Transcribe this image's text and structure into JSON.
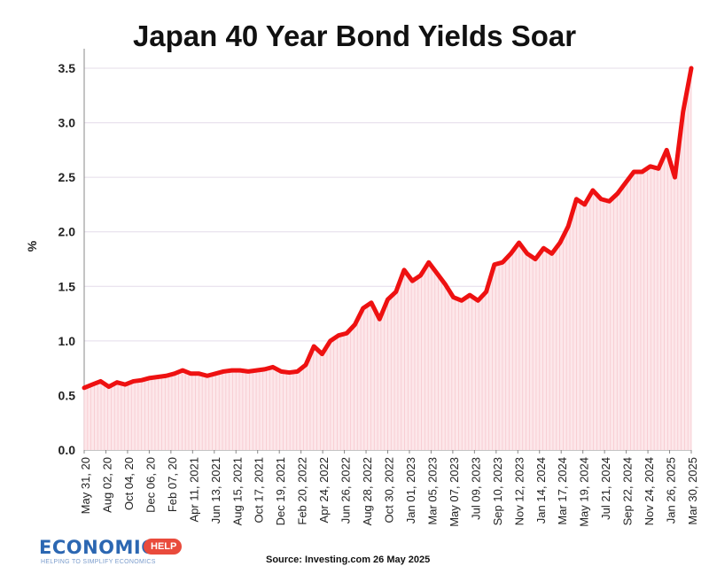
{
  "chart_data": {
    "type": "area",
    "title": "Japan 40 Year Bond Yields Soar",
    "ylabel": "%",
    "xlabel": "",
    "ylim": [
      0,
      3.5
    ],
    "yticks": [
      "0.0",
      "0.5",
      "1.0",
      "1.5",
      "2.0",
      "2.5",
      "3.0",
      "3.5"
    ],
    "xtick_labels": [
      "May 31, 20",
      "Aug 02, 20",
      "Oct 04, 20",
      "Dec 06, 20",
      "Feb 07, 20",
      "Apr 11, 2021",
      "Jun 13, 2021",
      "Aug 15, 2021",
      "Oct 17, 2021",
      "Dec 19, 2021",
      "Feb 20, 2022",
      "Apr 24, 2022",
      "Jun 26, 2022",
      "Aug 28, 2022",
      "Oct 30, 2022",
      "Jan 01, 2023",
      "Mar 05, 2023",
      "May 07, 2023",
      "Jul 09, 2023",
      "Sep 10, 2023",
      "Nov 12, 2023",
      "Jan 14, 2024",
      "Mar 17, 2024",
      "May 19, 2024",
      "Jul 21, 2024",
      "Sep 22, 2024",
      "Nov 24, 2024",
      "Jan 26, 2025",
      "Mar 30, 2025"
    ],
    "grid": true,
    "color": "#ee1111",
    "series": [
      {
        "values": [
          0.57,
          0.6,
          0.63,
          0.58,
          0.62,
          0.6,
          0.63,
          0.64,
          0.66,
          0.67,
          0.68,
          0.7,
          0.73,
          0.7,
          0.7,
          0.68,
          0.7,
          0.72,
          0.73,
          0.73,
          0.72,
          0.73,
          0.74,
          0.76,
          0.72,
          0.71,
          0.72,
          0.78,
          0.95,
          0.88,
          1.0,
          1.05,
          1.07,
          1.15,
          1.3,
          1.35,
          1.2,
          1.38,
          1.45,
          1.65,
          1.55,
          1.6,
          1.72,
          1.62,
          1.52,
          1.4,
          1.37,
          1.42,
          1.37,
          1.45,
          1.7,
          1.72,
          1.8,
          1.9,
          1.8,
          1.75,
          1.85,
          1.8,
          1.9,
          2.05,
          2.3,
          2.25,
          2.38,
          2.3,
          2.28,
          2.35,
          2.45,
          2.55,
          2.55,
          2.6,
          2.58,
          2.75,
          2.5,
          3.1,
          3.5
        ]
      }
    ]
  },
  "source": "Source: Investing.com 26 May 2025",
  "logo": {
    "main": "ECONOMICS",
    "badge": "HELP",
    "tagline": "HELPING TO SIMPLIFY ECONOMICS"
  }
}
